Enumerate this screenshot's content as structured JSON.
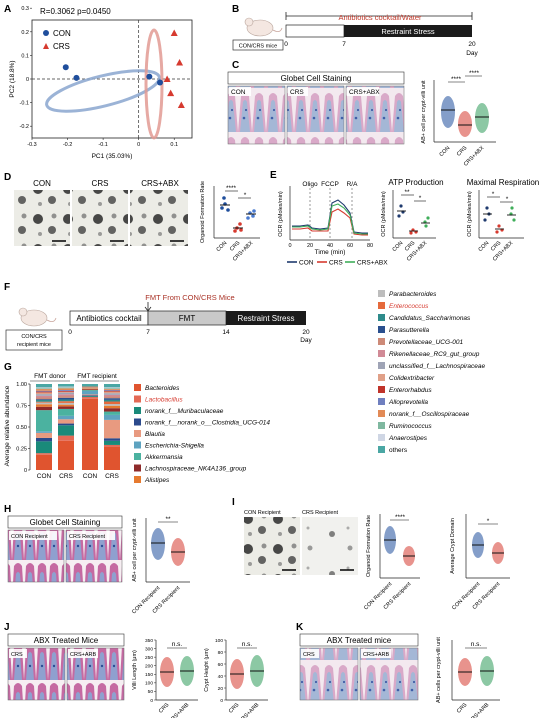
{
  "panels": {
    "A": "A",
    "B": "B",
    "C": "C",
    "D": "D",
    "E": "E",
    "F": "F",
    "G": "G",
    "H": "H",
    "I": "I",
    "J": "J",
    "K": "K"
  },
  "A": {
    "stats": "R=0.3062   p=0.0450",
    "xlabel": "PC1 (35.03%)",
    "ylabel": "PC2 (18.8%)",
    "legend": [
      "CON",
      "CRS"
    ],
    "xticks": [
      "-0.3",
      "-0.2",
      "-0.1",
      "0",
      "0.1"
    ],
    "yticks": [
      "0.3",
      "0.2",
      "0.1",
      "0",
      "-0.1",
      "-0.2"
    ],
    "colors": {
      "con": "#1f4e9c",
      "crs": "#d63a2f"
    },
    "con_points": [
      [
        -0.205,
        0.05
      ],
      [
        -0.175,
        0.005
      ],
      [
        0.03,
        0.01
      ],
      [
        0.06,
        -0.015
      ]
    ],
    "crs_points": [
      [
        0.1,
        0.195
      ],
      [
        0.115,
        0.07
      ],
      [
        0.08,
        0.0
      ],
      [
        0.09,
        -0.06
      ],
      [
        0.12,
        -0.11
      ]
    ]
  },
  "B": {
    "top_label": "Antibiotics cocktail/Water",
    "bar_label": "Restraint Stress",
    "ticks": [
      "0",
      "7",
      "20"
    ],
    "unit": "Day",
    "mice": "CON/CRS mice"
  },
  "C": {
    "title": "Globet Cell Staining",
    "images": [
      "CON",
      "CRS",
      "CRS+ABX"
    ],
    "ylabel": "AB+ cell per crypt-villi unit",
    "sig": [
      "****",
      "****"
    ],
    "xcats": [
      "CON",
      "CRS",
      "CRS+ABX"
    ]
  },
  "D": {
    "images": [
      "CON",
      "CRS",
      "CRS+ABX"
    ],
    "ylabel": "Organoid Formation Rate",
    "sig": [
      "****",
      "*"
    ],
    "xcats": [
      "CON",
      "CRS",
      "CRS+ABX"
    ]
  },
  "E": {
    "markers": [
      "Oligo",
      "FCCP",
      "R/A"
    ],
    "ylabel": "OCR (pMoles/min)",
    "xlabel": "Time (min)",
    "xticks": [
      "0",
      "20",
      "40",
      "60",
      "80"
    ],
    "legend": [
      "CON",
      "CRS",
      "CRS+ABX"
    ],
    "atp_title": "ATP Production",
    "max_title": "Maximal Respiration",
    "atp_sig": [
      "**",
      "*"
    ],
    "max_sig": [
      "*",
      "*"
    ],
    "xcats": [
      "CON",
      "CRS",
      "CRS+ABX"
    ]
  },
  "F": {
    "top_label": "FMT From CON/CRS Mice",
    "seg1": "Antibiotics cocktail",
    "seg2": "FMT",
    "seg3": "Restraint Stress",
    "ticks": [
      "0",
      "7",
      "14",
      "20"
    ],
    "unit": "Day",
    "mice": "CON/CRS recipient mice"
  },
  "G": {
    "donor": "FMT donor",
    "recipient": "FMT recipient",
    "ylabel": "Average relative abundance",
    "yticks": [
      "1.00",
      "0.75",
      "0.50",
      "0.25",
      "0"
    ],
    "xcats": [
      "CON",
      "CRS",
      "CON",
      "CRS"
    ],
    "legend_left": [
      {
        "name": "Bacteroides",
        "color": "#e0542f"
      },
      {
        "name": "Lactobacillus",
        "color": "#e46a56"
      },
      {
        "name": "norank_f__Muribaculaceae",
        "color": "#1a8a7a"
      },
      {
        "name": "norank_f__norank_o__Clostridia_UCG-014",
        "color": "#2b4a8c"
      },
      {
        "name": "Blautia",
        "color": "#e89a80"
      },
      {
        "name": "Escherichia-Shigella",
        "color": "#5ea3c0"
      },
      {
        "name": "Akkermansia",
        "color": "#4bb2a0"
      },
      {
        "name": "Lachnospiraceae_NK4A136_group",
        "color": "#8e2a2a"
      },
      {
        "name": "Alistipes",
        "color": "#e67a2f"
      }
    ],
    "legend_right": [
      {
        "name": "Parabacteroides",
        "color": "#bdbdbd"
      },
      {
        "name": "Enterococcus",
        "color": "#e56a3c"
      },
      {
        "name": "Candidatus_Saccharimonas",
        "color": "#2e8b8b"
      },
      {
        "name": "Parasutterella",
        "color": "#2a4f8e"
      },
      {
        "name": "Prevotellaceae_UCG-001",
        "color": "#cd8a78"
      },
      {
        "name": "Rikenellaceae_RC9_gut_group",
        "color": "#d18a96"
      },
      {
        "name": "unclassified_f__Lachnospiraceae",
        "color": "#9fa4b6"
      },
      {
        "name": "Colidextribacter",
        "color": "#e0a088"
      },
      {
        "name": "Enterorhabdus",
        "color": "#c0332a"
      },
      {
        "name": "Alloprevotella",
        "color": "#6f7fbf"
      },
      {
        "name": "norank_f__Oscillospiraceae",
        "color": "#e28a56"
      },
      {
        "name": "Ruminococcus",
        "color": "#7fb8a0"
      },
      {
        "name": "Anaerostipes",
        "color": "#cfd6e4"
      },
      {
        "name": "others",
        "color": "#4aa7a4"
      }
    ]
  },
  "H": {
    "title": "Globet Cell Staining",
    "images": [
      "CON Recipient",
      "CRS Recipient"
    ],
    "ylabel": "AB+ cell per crypt-villi unit",
    "sig": "**",
    "xcats": [
      "CON Recipient",
      "CRS Recipient"
    ]
  },
  "I": {
    "images": [
      "CON Recipient",
      "CRS Recipient"
    ],
    "ylabel1": "Organoid Formation Rate",
    "ylabel2": "Average Crypt Domain",
    "sig1": "****",
    "sig2": "*",
    "xcats": [
      "CON Recipient",
      "CRS Recipient"
    ]
  },
  "J": {
    "title": "ABX Treated Mice",
    "images": [
      "CRS",
      "CRS+ARB"
    ],
    "ylabel1": "Villi Length (μm)",
    "ylabel2": "Crypt Height (μm)",
    "sig": [
      "n.s.",
      "n.s."
    ],
    "yticks1": [
      "350",
      "300",
      "250",
      "200",
      "150",
      "100",
      "50",
      "0"
    ],
    "yticks2": [
      "100",
      "80",
      "60",
      "40",
      "20",
      "0"
    ],
    "xcats": [
      "CRS",
      "CRS+ARB"
    ]
  },
  "K": {
    "title": "ABX Treated mice",
    "images": [
      "CRS",
      "CRS+ARB"
    ],
    "ylabel": "AB+ cells per crypt-villi unit",
    "sig": "n.s.",
    "xcats": [
      "CRS",
      "CRS+ARB"
    ]
  }
}
